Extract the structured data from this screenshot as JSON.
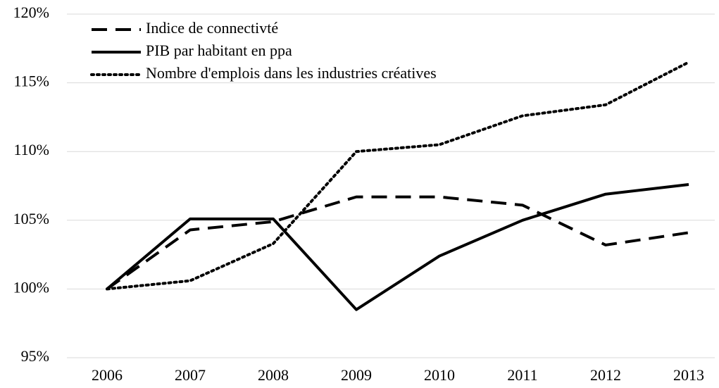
{
  "chart_data": {
    "type": "line",
    "categories": [
      "2006",
      "2007",
      "2008",
      "2009",
      "2010",
      "2011",
      "2012",
      "2013"
    ],
    "series": [
      {
        "name": "Indice de connectivté",
        "color": "#000000",
        "style": "dashed",
        "values": [
          100,
          104.3,
          104.9,
          106.7,
          106.7,
          106.1,
          103.2,
          104.1
        ]
      },
      {
        "name": "PIB par habitant en ppa",
        "color": "#000000",
        "style": "solid",
        "values": [
          100,
          105.1,
          105.1,
          98.5,
          102.4,
          105.0,
          106.9,
          107.6
        ]
      },
      {
        "name": "Nombre d'emplois dans les industries créatives",
        "color": "#000000",
        "style": "dotted",
        "values": [
          100,
          100.6,
          103.3,
          110.0,
          110.5,
          112.6,
          113.4,
          116.5
        ]
      }
    ],
    "ylim": [
      95,
      120
    ],
    "yticks": [
      {
        "value": 95,
        "label": "95%"
      },
      {
        "value": 100,
        "label": "100%"
      },
      {
        "value": 105,
        "label": "105%"
      },
      {
        "value": 110,
        "label": "110%"
      },
      {
        "value": 115,
        "label": "115%"
      },
      {
        "value": 120,
        "label": "120%"
      }
    ],
    "grid": true,
    "legend": "top-left"
  }
}
